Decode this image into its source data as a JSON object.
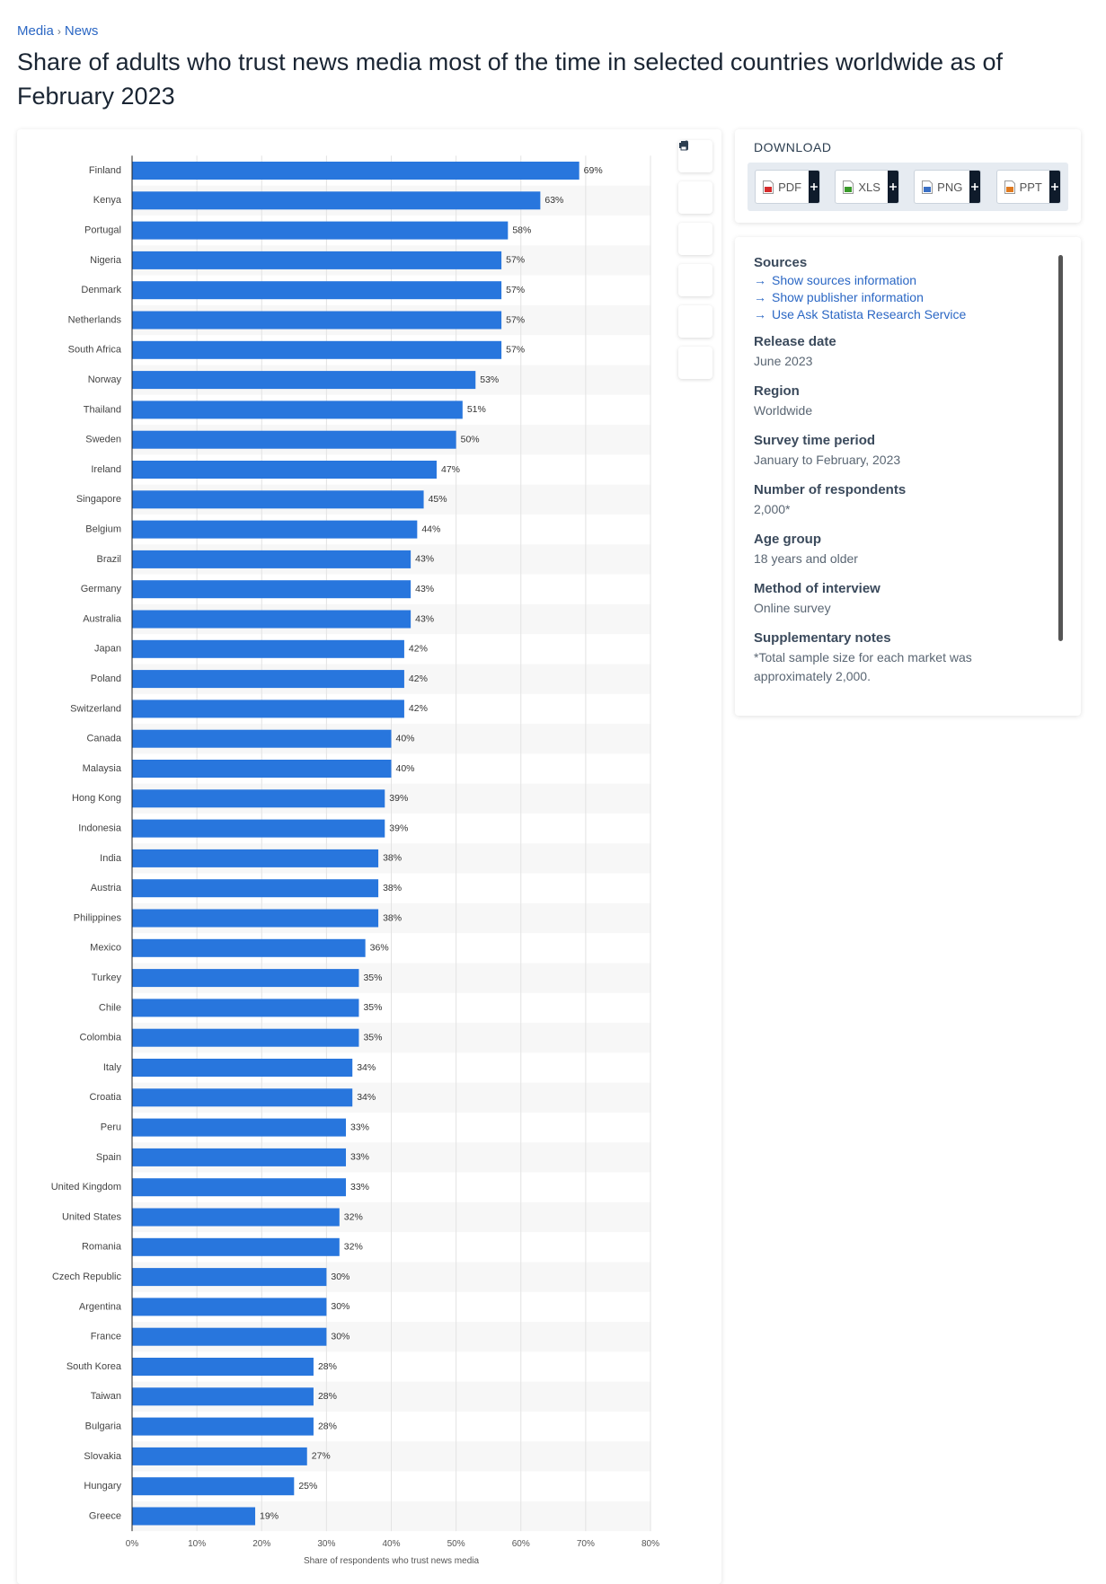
{
  "breadcrumb": [
    "Media",
    "News"
  ],
  "title": "Share of adults who trust news media most of the time in selected countries worldwide as of February 2023",
  "chart_data": {
    "type": "hbar",
    "categories": [
      "Finland",
      "Kenya",
      "Portugal",
      "Nigeria",
      "Denmark",
      "Netherlands",
      "South Africa",
      "Norway",
      "Thailand",
      "Sweden",
      "Ireland",
      "Singapore",
      "Belgium",
      "Brazil",
      "Germany",
      "Australia",
      "Japan",
      "Poland",
      "Switzerland",
      "Canada",
      "Malaysia",
      "Hong Kong",
      "Indonesia",
      "India",
      "Austria",
      "Philippines",
      "Mexico",
      "Turkey",
      "Chile",
      "Colombia",
      "Italy",
      "Croatia",
      "Peru",
      "Spain",
      "United Kingdom",
      "United States",
      "Romania",
      "Czech Republic",
      "Argentina",
      "France",
      "South Korea",
      "Taiwan",
      "Bulgaria",
      "Slovakia",
      "Hungary",
      "Greece"
    ],
    "values": [
      69,
      63,
      58,
      57,
      57,
      57,
      57,
      53,
      51,
      50,
      47,
      45,
      44,
      43,
      43,
      43,
      42,
      42,
      42,
      40,
      40,
      39,
      39,
      38,
      38,
      38,
      36,
      35,
      35,
      35,
      34,
      34,
      33,
      33,
      33,
      32,
      32,
      30,
      30,
      30,
      28,
      28,
      28,
      27,
      25,
      19
    ],
    "value_labels": [
      "69%",
      "63%",
      "58%",
      "57%",
      "57%",
      "57%",
      "57%",
      "53%",
      "51%",
      "50%",
      "47%",
      "45%",
      "44%",
      "43%",
      "43%",
      "43%",
      "42%",
      "42%",
      "42%",
      "40%",
      "40%",
      "39%",
      "39%",
      "38%",
      "38%",
      "38%",
      "36%",
      "35%",
      "35%",
      "35%",
      "34%",
      "34%",
      "33%",
      "33%",
      "33%",
      "32%",
      "32%",
      "30%",
      "30%",
      "30%",
      "28%",
      "28%",
      "28%",
      "27%",
      "25%",
      "19%"
    ],
    "color": "#2876dd",
    "xlim": [
      0,
      80
    ],
    "xticks": [
      {
        "value": 0,
        "label": "0%"
      },
      {
        "value": 10,
        "label": "10%"
      },
      {
        "value": 20,
        "label": "20%"
      },
      {
        "value": 30,
        "label": "30%"
      },
      {
        "value": 40,
        "label": "40%"
      },
      {
        "value": 50,
        "label": "50%"
      },
      {
        "value": 60,
        "label": "60%"
      },
      {
        "value": 70,
        "label": "70%"
      },
      {
        "value": 80,
        "label": "80%"
      }
    ],
    "x_label": "Share of respondents who trust news media",
    "grid": true
  },
  "sidebar": {
    "download": {
      "title": "DOWNLOAD",
      "formats": [
        "PDF",
        "XLS",
        "PNG",
        "PPT"
      ]
    },
    "sources": {
      "title": "Sources",
      "links": [
        "Show sources information",
        "Show publisher information",
        "Use Ask Statista Research Service"
      ]
    },
    "details": [
      {
        "label": "Release date",
        "value": "June 2023"
      },
      {
        "label": "Region",
        "value": "Worldwide"
      },
      {
        "label": "Survey time period",
        "value": "January to February, 2023"
      },
      {
        "label": "Number of respondents",
        "value": "2,000*"
      },
      {
        "label": "Age group",
        "value": "18 years and older"
      },
      {
        "label": "Method of interview",
        "value": "Online survey"
      },
      {
        "label": "Supplementary notes",
        "value": "*Total sample size for each market was approximately 2,000."
      }
    ]
  }
}
